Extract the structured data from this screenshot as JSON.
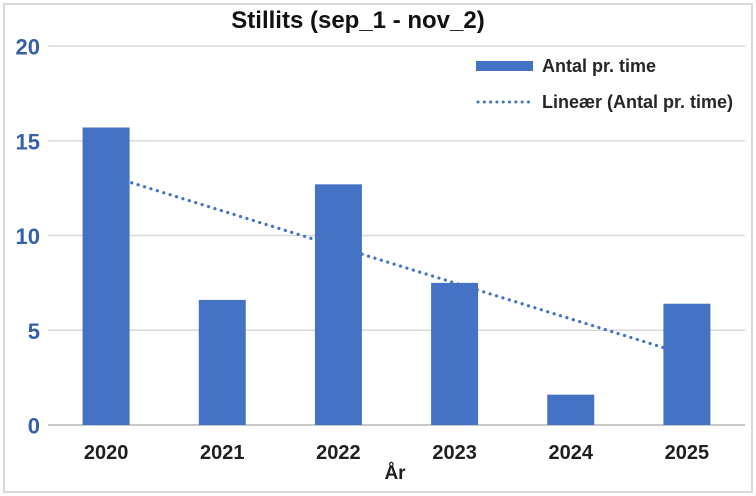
{
  "chart_data": {
    "type": "bar",
    "title": "Stillits (sep_1 - nov_2)",
    "xlabel": "År",
    "ylabel": "",
    "ylim": [
      0,
      20
    ],
    "yticks": [
      0,
      5,
      10,
      15,
      20
    ],
    "grid": true,
    "categories": [
      "2020",
      "2021",
      "2022",
      "2023",
      "2024",
      "2025"
    ],
    "series": [
      {
        "name": "Antal pr. time",
        "type": "bar",
        "values": [
          15.7,
          6.6,
          12.7,
          7.5,
          1.6,
          6.4
        ],
        "color": "#4472C4"
      },
      {
        "name": "Lineær (Antal pr. time)",
        "type": "linear-trendline",
        "style": "dotted",
        "color": "#4472C4",
        "endpoints": [
          13.2,
          3.7
        ]
      }
    ],
    "legend": {
      "position": "top-right",
      "items": [
        "Antal pr. time",
        "Lineær (Antal pr. time)"
      ]
    },
    "colors": {
      "gridline": "#D9D9D9",
      "axis_line": "#C8C8C8",
      "frame_border": "#D9D9D9",
      "ytick_label": "#3560A8",
      "category_label": "#1F1F1F",
      "title": "#111111",
      "legend_text": "#262626"
    }
  }
}
